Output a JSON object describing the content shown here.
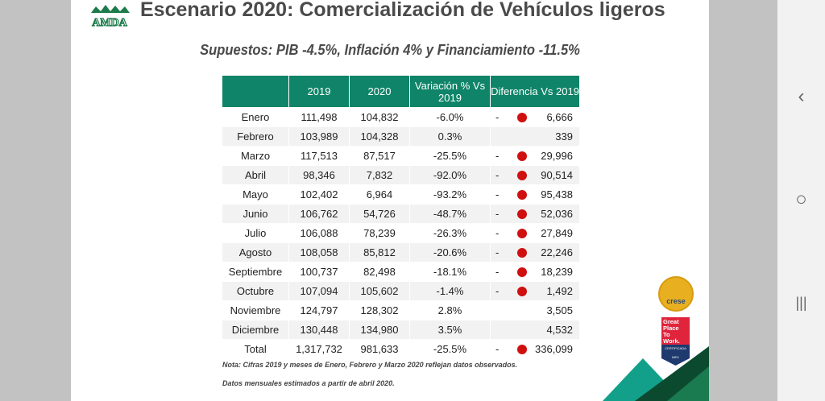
{
  "header": {
    "title": "Escenario 2020: Comercialización de Vehículos ligeros",
    "subtitle": "Supuestos: PIB -4.5%, Inflación 4% y Financiamiento -11.5%",
    "logo_text": "AMDA"
  },
  "table": {
    "columns": [
      "",
      "2019",
      "2020",
      "Variación % Vs 2019",
      "Diferencia Vs 2019"
    ],
    "rows": [
      {
        "month": "Enero",
        "y2019": "111,498",
        "y2020": "104,832",
        "var": "-6.0%",
        "neg": true,
        "diff": "6,666"
      },
      {
        "month": "Febrero",
        "y2019": "103,989",
        "y2020": "104,328",
        "var": "0.3%",
        "neg": false,
        "diff": "339"
      },
      {
        "month": "Marzo",
        "y2019": "117,513",
        "y2020": "87,517",
        "var": "-25.5%",
        "neg": true,
        "diff": "29,996"
      },
      {
        "month": "Abril",
        "y2019": "98,346",
        "y2020": "7,832",
        "var": "-92.0%",
        "neg": true,
        "diff": "90,514"
      },
      {
        "month": "Mayo",
        "y2019": "102,402",
        "y2020": "6,964",
        "var": "-93.2%",
        "neg": true,
        "diff": "95,438"
      },
      {
        "month": "Junio",
        "y2019": "106,762",
        "y2020": "54,726",
        "var": "-48.7%",
        "neg": true,
        "diff": "52,036"
      },
      {
        "month": "Julio",
        "y2019": "106,088",
        "y2020": "78,239",
        "var": "-26.3%",
        "neg": true,
        "diff": "27,849"
      },
      {
        "month": "Agosto",
        "y2019": "108,058",
        "y2020": "85,812",
        "var": "-20.6%",
        "neg": true,
        "diff": "22,246"
      },
      {
        "month": "Septiembre",
        "y2019": "100,737",
        "y2020": "82,498",
        "var": "-18.1%",
        "neg": true,
        "diff": "18,239"
      },
      {
        "month": "Octubre",
        "y2019": "107,094",
        "y2020": "105,602",
        "var": "-1.4%",
        "neg": true,
        "diff": "1,492"
      },
      {
        "month": "Noviembre",
        "y2019": "124,797",
        "y2020": "128,302",
        "var": "2.8%",
        "neg": false,
        "diff": "3,505"
      },
      {
        "month": "Diciembre",
        "y2019": "130,448",
        "y2020": "134,980",
        "var": "3.5%",
        "neg": false,
        "diff": "4,532"
      },
      {
        "month": "Total",
        "y2019": "1,317,732",
        "y2020": "981,633",
        "var": "-25.5%",
        "neg": true,
        "diff": "336,099"
      }
    ],
    "dash": "-"
  },
  "notes": [
    "Nota: Cifras 2019 y meses de Enero, Febrero y Marzo 2020 reflejan datos observados.",
    "Datos mensuales estimados a partir de abril 2020."
  ],
  "badges": {
    "crese": "crese",
    "gptw": [
      "Great",
      "Place",
      "To",
      "Work."
    ],
    "gptw_cert": "CERTIFICADA",
    "gptw_country": "MEX"
  },
  "colors": {
    "header_green": "#0f8468",
    "negative_dot": "#d01010"
  },
  "navbar": {
    "back": "‹",
    "home": "○",
    "recents": "|||"
  }
}
